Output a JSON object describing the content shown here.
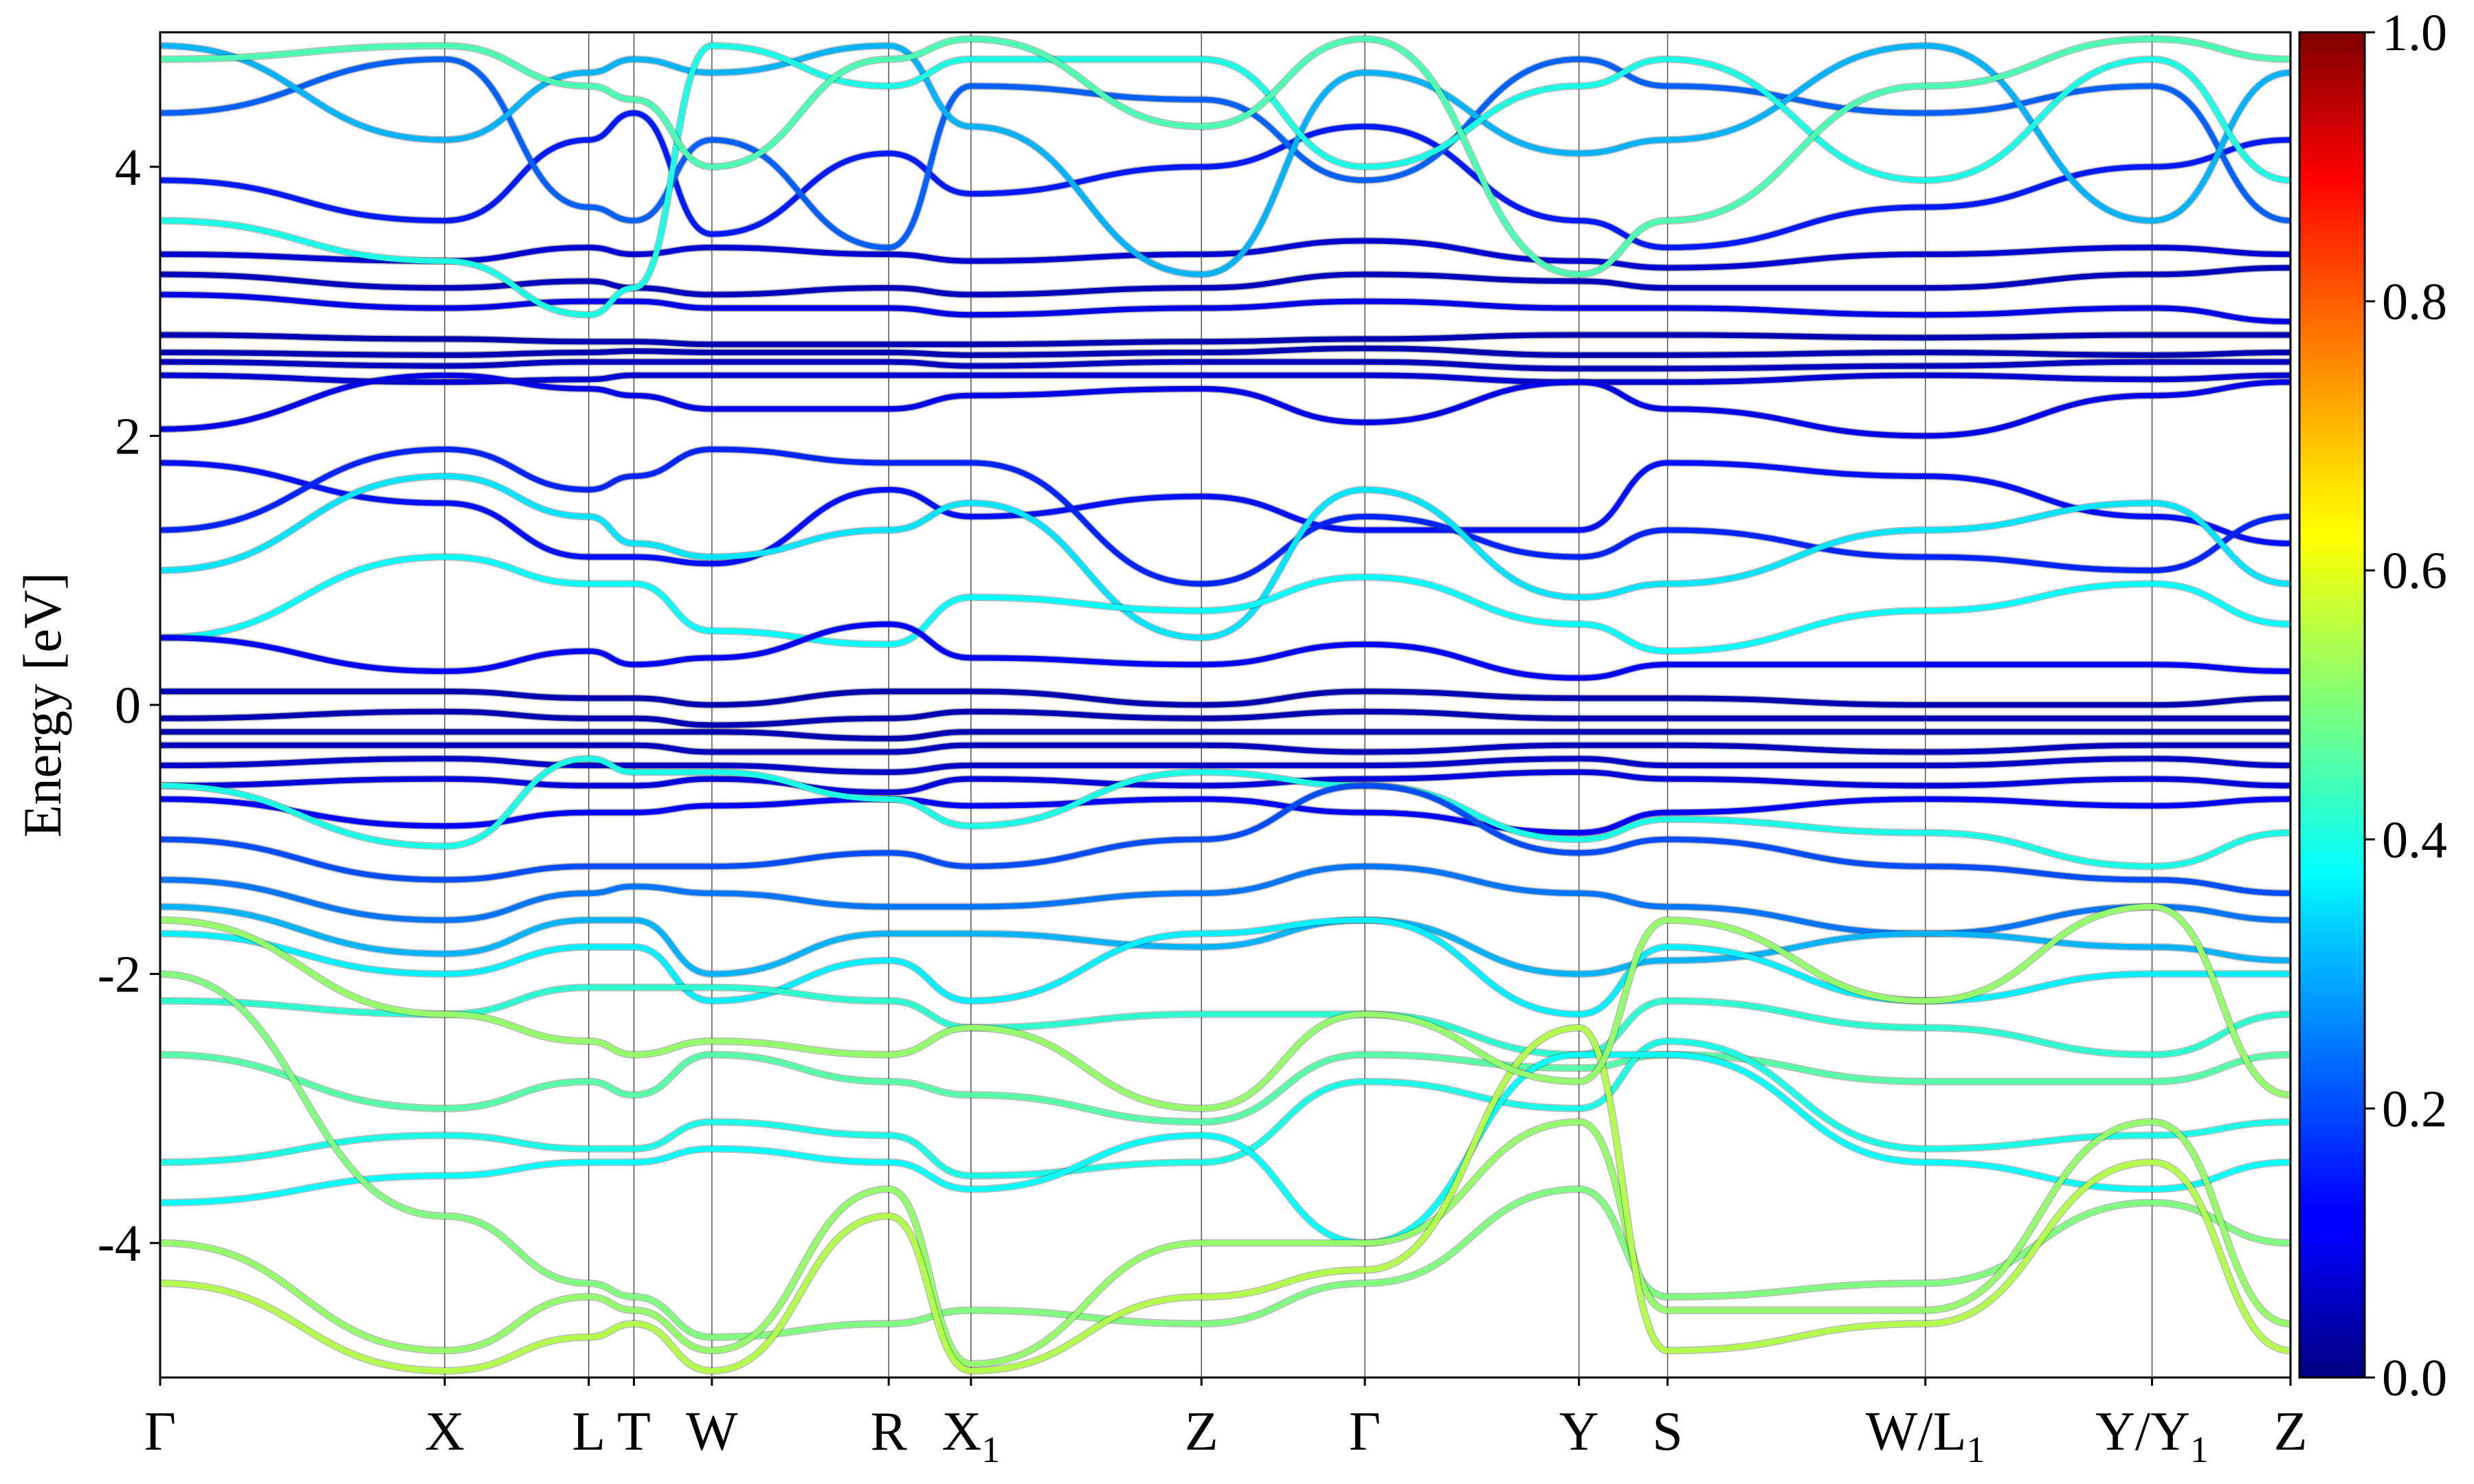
{
  "chart_data": {
    "type": "line",
    "title": "",
    "ylabel": "Energy [eV]",
    "xlabel": "",
    "ylim": [
      -5,
      5
    ],
    "yticks": [
      -4,
      -2,
      0,
      2,
      4
    ],
    "ytick_labels": [
      "-4",
      "-2",
      "0",
      "2",
      "4"
    ],
    "grid": false,
    "kpath": [
      {
        "label": "Γ",
        "sub": "",
        "x": 0.0
      },
      {
        "label": "X",
        "sub": "",
        "x": 0.1336
      },
      {
        "label": "L",
        "sub": "",
        "x": 0.2012
      },
      {
        "label": "T",
        "sub": "",
        "x": 0.2224
      },
      {
        "label": "W",
        "sub": "",
        "x": 0.259
      },
      {
        "label": "R",
        "sub": "",
        "x": 0.342
      },
      {
        "label": "X",
        "sub": "1",
        "x": 0.3806
      },
      {
        "label": "Z",
        "sub": "",
        "x": 0.4888
      },
      {
        "label": "Γ",
        "sub": "",
        "x": 0.5655
      },
      {
        "label": "Y",
        "sub": "",
        "x": 0.666
      },
      {
        "label": "S",
        "sub": "",
        "x": 0.7076
      },
      {
        "label": "W/L",
        "sub": "1",
        "x": 0.8286
      },
      {
        "label": "Y/Y",
        "sub": "1",
        "x": 0.935
      },
      {
        "label": "Z",
        "sub": "",
        "x": 1.0
      }
    ],
    "colorbar": {
      "colormap": "jet",
      "range": [
        0.0,
        1.0
      ],
      "ticks": [
        0.0,
        0.2,
        0.4,
        0.6,
        0.8,
        1.0
      ],
      "tick_labels": [
        "0.0",
        "0.2",
        "0.4",
        "0.6",
        "0.8",
        "1.0"
      ]
    },
    "bands": [
      {
        "weight": 0.05,
        "energies": [
          2.75,
          2.72,
          2.7,
          2.7,
          2.68,
          2.68,
          2.68,
          2.7,
          2.72,
          2.75,
          2.75,
          2.73,
          2.75,
          2.75
        ]
      },
      {
        "weight": 0.05,
        "energies": [
          2.62,
          2.6,
          2.62,
          2.63,
          2.62,
          2.62,
          2.6,
          2.62,
          2.65,
          2.6,
          2.6,
          2.62,
          2.6,
          2.62
        ]
      },
      {
        "weight": 0.06,
        "energies": [
          2.55,
          2.52,
          2.55,
          2.55,
          2.55,
          2.55,
          2.52,
          2.55,
          2.55,
          2.5,
          2.5,
          2.52,
          2.55,
          2.55
        ]
      },
      {
        "weight": 0.08,
        "energies": [
          2.45,
          2.4,
          2.42,
          2.45,
          2.45,
          2.45,
          2.45,
          2.45,
          2.45,
          2.4,
          2.4,
          2.45,
          2.42,
          2.45
        ]
      },
      {
        "weight": 0.1,
        "energies": [
          2.05,
          2.45,
          2.35,
          2.3,
          2.2,
          2.2,
          2.3,
          2.35,
          2.1,
          2.4,
          2.2,
          2.0,
          2.3,
          2.4
        ]
      },
      {
        "weight": 0.06,
        "energies": [
          3.2,
          3.1,
          3.15,
          3.1,
          3.05,
          3.1,
          3.05,
          3.1,
          3.2,
          3.15,
          3.1,
          3.1,
          3.2,
          3.25
        ]
      },
      {
        "weight": 0.08,
        "energies": [
          3.35,
          3.3,
          3.4,
          3.35,
          3.4,
          3.35,
          3.3,
          3.35,
          3.45,
          3.3,
          3.25,
          3.35,
          3.4,
          3.35
        ]
      },
      {
        "weight": 0.1,
        "energies": [
          3.05,
          2.95,
          3.0,
          3.0,
          2.95,
          2.95,
          2.9,
          2.95,
          3.0,
          2.95,
          2.95,
          2.9,
          2.95,
          2.85
        ]
      },
      {
        "weight": 0.15,
        "energies": [
          3.9,
          3.6,
          4.2,
          4.4,
          3.5,
          4.1,
          3.8,
          4.0,
          4.3,
          3.6,
          3.4,
          3.7,
          4.0,
          4.2
        ]
      },
      {
        "weight": 0.22,
        "energies": [
          4.4,
          4.8,
          3.7,
          3.6,
          4.2,
          3.4,
          4.6,
          4.5,
          3.9,
          4.8,
          4.6,
          4.4,
          4.6,
          3.6
        ]
      },
      {
        "weight": 0.3,
        "energies": [
          4.9,
          4.2,
          4.7,
          4.8,
          4.7,
          4.9,
          4.3,
          3.2,
          4.7,
          4.1,
          4.2,
          4.9,
          3.6,
          4.7
        ]
      },
      {
        "weight": 0.4,
        "energies": [
          3.6,
          3.3,
          2.9,
          3.1,
          4.9,
          4.6,
          4.8,
          4.8,
          4.0,
          4.6,
          4.8,
          3.9,
          4.8,
          3.9
        ]
      },
      {
        "weight": 0.45,
        "energies": [
          4.8,
          4.9,
          4.6,
          4.5,
          4.0,
          4.8,
          4.95,
          4.3,
          4.95,
          3.2,
          3.6,
          4.6,
          4.95,
          4.8
        ]
      },
      {
        "weight": 0.14,
        "energies": [
          1.8,
          1.5,
          1.1,
          1.1,
          1.05,
          1.6,
          1.4,
          1.55,
          1.3,
          1.3,
          1.8,
          1.7,
          1.4,
          1.2
        ]
      },
      {
        "weight": 0.16,
        "energies": [
          1.3,
          1.9,
          1.6,
          1.7,
          1.9,
          1.8,
          1.8,
          0.9,
          1.4,
          1.1,
          1.3,
          1.1,
          1.0,
          1.4
        ]
      },
      {
        "weight": 0.35,
        "energies": [
          1.0,
          1.7,
          1.4,
          1.2,
          1.1,
          1.3,
          1.5,
          0.5,
          1.6,
          0.8,
          0.9,
          1.3,
          1.5,
          0.9
        ]
      },
      {
        "weight": 0.38,
        "energies": [
          0.5,
          1.1,
          0.9,
          0.9,
          0.55,
          0.45,
          0.8,
          0.7,
          0.95,
          0.6,
          0.4,
          0.7,
          0.9,
          0.6
        ]
      },
      {
        "weight": 0.12,
        "energies": [
          0.5,
          0.25,
          0.4,
          0.3,
          0.35,
          0.6,
          0.35,
          0.3,
          0.45,
          0.2,
          0.3,
          0.3,
          0.3,
          0.25
        ]
      },
      {
        "weight": 0.05,
        "energies": [
          0.1,
          0.1,
          0.05,
          0.05,
          0.0,
          0.1,
          0.1,
          0.0,
          0.1,
          0.05,
          0.05,
          0.0,
          0.0,
          0.05
        ]
      },
      {
        "weight": 0.05,
        "energies": [
          -0.1,
          -0.05,
          -0.1,
          -0.1,
          -0.15,
          -0.1,
          -0.05,
          -0.1,
          -0.05,
          -0.1,
          -0.1,
          -0.1,
          -0.1,
          -0.1
        ]
      },
      {
        "weight": 0.05,
        "energies": [
          -0.2,
          -0.2,
          -0.2,
          -0.2,
          -0.2,
          -0.25,
          -0.2,
          -0.2,
          -0.2,
          -0.2,
          -0.2,
          -0.2,
          -0.2,
          -0.2
        ]
      },
      {
        "weight": 0.06,
        "energies": [
          -0.3,
          -0.3,
          -0.3,
          -0.3,
          -0.35,
          -0.35,
          -0.3,
          -0.3,
          -0.35,
          -0.3,
          -0.3,
          -0.35,
          -0.3,
          -0.3
        ]
      },
      {
        "weight": 0.07,
        "energies": [
          -0.45,
          -0.4,
          -0.45,
          -0.45,
          -0.45,
          -0.5,
          -0.45,
          -0.45,
          -0.45,
          -0.4,
          -0.45,
          -0.45,
          -0.4,
          -0.45
        ]
      },
      {
        "weight": 0.09,
        "energies": [
          -0.6,
          -0.55,
          -0.6,
          -0.6,
          -0.55,
          -0.65,
          -0.55,
          -0.6,
          -0.55,
          -0.5,
          -0.55,
          -0.6,
          -0.55,
          -0.6
        ]
      },
      {
        "weight": 0.12,
        "energies": [
          -0.7,
          -0.9,
          -0.8,
          -0.8,
          -0.75,
          -0.7,
          -0.75,
          -0.7,
          -0.8,
          -0.95,
          -0.8,
          -0.7,
          -0.75,
          -0.7
        ]
      },
      {
        "weight": 0.4,
        "energies": [
          -0.6,
          -1.05,
          -0.4,
          -0.5,
          -0.5,
          -0.7,
          -0.9,
          -0.5,
          -0.6,
          -1.0,
          -0.85,
          -0.95,
          -1.2,
          -0.95
        ]
      },
      {
        "weight": 0.2,
        "energies": [
          -1.0,
          -1.3,
          -1.2,
          -1.2,
          -1.2,
          -1.1,
          -1.2,
          -1.0,
          -0.6,
          -1.1,
          -1.0,
          -1.2,
          -1.3,
          -1.4
        ]
      },
      {
        "weight": 0.24,
        "energies": [
          -1.3,
          -1.6,
          -1.4,
          -1.35,
          -1.4,
          -1.5,
          -1.5,
          -1.4,
          -1.2,
          -1.4,
          -1.5,
          -1.7,
          -1.5,
          -1.6
        ]
      },
      {
        "weight": 0.3,
        "energies": [
          -1.5,
          -1.85,
          -1.6,
          -1.6,
          -2.0,
          -1.7,
          -1.7,
          -1.8,
          -1.6,
          -2.0,
          -1.9,
          -1.7,
          -1.8,
          -1.9
        ]
      },
      {
        "weight": 0.36,
        "energies": [
          -1.7,
          -2.0,
          -1.8,
          -1.8,
          -2.2,
          -1.9,
          -2.2,
          -1.7,
          -1.6,
          -2.3,
          -1.8,
          -2.2,
          -2.0,
          -2.0
        ]
      },
      {
        "weight": 0.42,
        "energies": [
          -2.2,
          -2.3,
          -2.1,
          -2.1,
          -2.1,
          -2.2,
          -2.4,
          -2.3,
          -2.3,
          -2.6,
          -2.2,
          -2.4,
          -2.6,
          -2.3
        ]
      },
      {
        "weight": 0.46,
        "energies": [
          -2.6,
          -3.0,
          -2.8,
          -2.9,
          -2.6,
          -2.8,
          -2.9,
          -3.1,
          -2.6,
          -2.7,
          -2.6,
          -2.8,
          -2.8,
          -2.6
        ]
      },
      {
        "weight": 0.4,
        "energies": [
          -3.4,
          -3.2,
          -3.3,
          -3.3,
          -3.1,
          -3.2,
          -3.5,
          -3.4,
          -2.8,
          -3.0,
          -2.5,
          -3.3,
          -3.2,
          -3.1
        ]
      },
      {
        "weight": 0.38,
        "energies": [
          -3.7,
          -3.5,
          -3.4,
          -3.4,
          -3.3,
          -3.4,
          -3.6,
          -3.2,
          -4.0,
          -2.6,
          -2.6,
          -3.4,
          -3.6,
          -3.4
        ]
      },
      {
        "weight": 0.5,
        "energies": [
          -2.0,
          -3.8,
          -4.3,
          -4.4,
          -4.7,
          -4.6,
          -4.5,
          -4.6,
          -4.3,
          -3.6,
          -4.4,
          -4.3,
          -3.7,
          -4.0
        ]
      },
      {
        "weight": 0.52,
        "energies": [
          -4.0,
          -4.8,
          -4.4,
          -4.5,
          -4.8,
          -3.6,
          -4.9,
          -4.0,
          -4.0,
          -3.1,
          -4.5,
          -4.5,
          -3.1,
          -4.6
        ]
      },
      {
        "weight": 0.55,
        "energies": [
          -4.3,
          -4.95,
          -4.7,
          -4.6,
          -4.95,
          -3.8,
          -4.95,
          -4.4,
          -4.2,
          -2.4,
          -4.8,
          -4.6,
          -3.4,
          -4.8
        ]
      },
      {
        "weight": 0.52,
        "energies": [
          -1.6,
          -2.3,
          -2.5,
          -2.6,
          -2.5,
          -2.6,
          -2.4,
          -3.0,
          -2.3,
          -2.8,
          -1.6,
          -2.2,
          -1.5,
          -2.9
        ]
      }
    ]
  }
}
